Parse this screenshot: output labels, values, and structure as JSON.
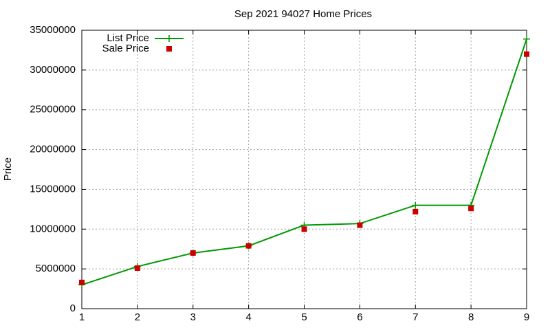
{
  "chart_data": {
    "type": "line",
    "title": "Sep 2021 94027 Home Prices",
    "y_label": "Price",
    "x": [
      1,
      2,
      3,
      4,
      5,
      6,
      7,
      8,
      9
    ],
    "xlim": [
      1,
      9
    ],
    "xticks": [
      1,
      2,
      3,
      4,
      5,
      6,
      7,
      8,
      9
    ],
    "ylim": [
      0,
      35000000
    ],
    "yticks": [
      0,
      5000000,
      10000000,
      15000000,
      20000000,
      25000000,
      30000000,
      35000000
    ],
    "grid": true,
    "legend": "top-left",
    "series": [
      {
        "name": "List Price",
        "color": "#009900",
        "style": "linespoints",
        "values": [
          3000000,
          5300000,
          7000000,
          7900000,
          10500000,
          10700000,
          13000000,
          13000000,
          33900000
        ]
      },
      {
        "name": "Sale Price",
        "color": "#cc0000",
        "style": "points",
        "values": [
          3300000,
          5100000,
          7000000,
          7900000,
          10000000,
          10500000,
          12200000,
          12600000,
          32000000
        ]
      }
    ]
  }
}
